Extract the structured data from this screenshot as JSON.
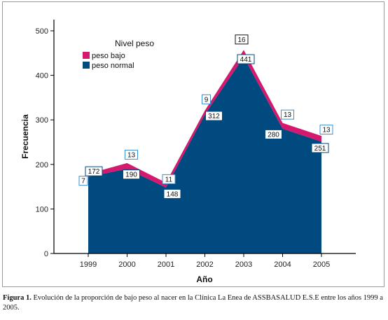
{
  "chart_data": {
    "type": "area",
    "stacked": true,
    "categories": [
      "1999",
      "2000",
      "2001",
      "2002",
      "2003",
      "2004",
      "2005"
    ],
    "series": [
      {
        "name": "peso normal",
        "values": [
          172,
          190,
          148,
          312,
          441,
          280,
          251
        ],
        "color": "#004a80"
      },
      {
        "name": "peso bajo",
        "values": [
          7,
          13,
          11,
          9,
          16,
          13,
          13
        ],
        "color": "#d4196e"
      }
    ],
    "xlabel": "Año",
    "ylabel": "Frecuencia",
    "ylim": [
      0,
      500
    ],
    "yticks": [
      0,
      100,
      200,
      300,
      400,
      500
    ],
    "grid": false,
    "legend": {
      "title": "Nivel peso",
      "placement": "top-left",
      "entries": [
        "peso bajo",
        "peso normal"
      ]
    }
  },
  "caption": {
    "label": "Figura 1.",
    "text": "Evolución de la proporción de bajo peso al nacer en la Clínica La Enea de ASSBASALUD E.S.E entre los años 1999 a 2005."
  }
}
